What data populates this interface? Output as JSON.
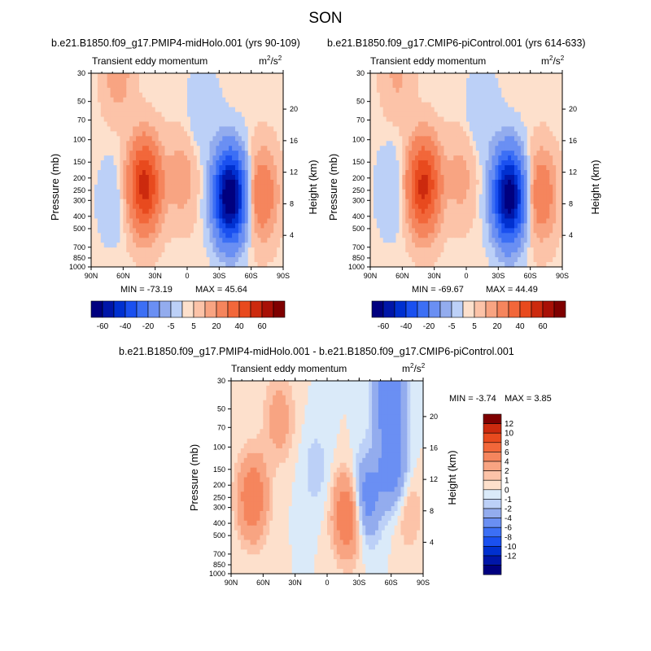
{
  "figure": {
    "title": "SON"
  },
  "labels": {
    "units": "m",
    "units_sup": "2",
    "units_tail": "/s",
    "units_sup2": "2"
  },
  "chart_data": [
    {
      "type": "heatmap",
      "title": "b.e21.B1850.f09_g17.PMIP4-midHolo.001 (yrs 90-109)",
      "subtitle": "Transient eddy momentum",
      "units": "m^2/s^2",
      "xlabel": "",
      "ylabel": "Pressure (mb)",
      "y2label": "Height (km)",
      "x_ticks": [
        "90N",
        "60N",
        "30N",
        "0",
        "30S",
        "60S",
        "90S"
      ],
      "y_ticks": [
        30,
        50,
        70,
        100,
        150,
        200,
        250,
        300,
        400,
        500,
        700,
        850,
        1000
      ],
      "y2_ticks": [
        4,
        8,
        12,
        16,
        20
      ],
      "ylim": [
        1000,
        30
      ],
      "log_y": true,
      "min": -73.19,
      "max": 45.64,
      "min_label": "MIN = -73.19",
      "max_label": "MAX = 45.64",
      "features": [
        {
          "lat": 40,
          "p": 230,
          "value": 45
        },
        {
          "lat": -40,
          "p": 280,
          "value": -73
        },
        {
          "lat": -70,
          "p": 270,
          "value": 18
        },
        {
          "lat": 5,
          "p": 200,
          "value": 8
        },
        {
          "lat": 65,
          "p": 30,
          "value": 8
        },
        {
          "lat": -15,
          "p": 60,
          "value": -5
        },
        {
          "lat": 70,
          "p": 300,
          "value": -4
        }
      ]
    },
    {
      "type": "heatmap",
      "title": "b.e21.B1850.f09_g17.CMIP6-piControl.001 (yrs 614-633)",
      "subtitle": "Transient eddy momentum",
      "units": "m^2/s^2",
      "xlabel": "",
      "ylabel": "Pressure (mb)",
      "y2label": "Height (km)",
      "x_ticks": [
        "90N",
        "60N",
        "30N",
        "0",
        "30S",
        "60S",
        "90S"
      ],
      "y_ticks": [
        30,
        50,
        70,
        100,
        150,
        200,
        250,
        300,
        400,
        500,
        700,
        850,
        1000
      ],
      "y2_ticks": [
        4,
        8,
        12,
        16,
        20
      ],
      "ylim": [
        1000,
        30
      ],
      "log_y": true,
      "min": -69.67,
      "max": 44.49,
      "min_label": "MIN = -69.67",
      "max_label": "MAX = 44.49",
      "features": [
        {
          "lat": 40,
          "p": 230,
          "value": 44
        },
        {
          "lat": -40,
          "p": 280,
          "value": -69
        },
        {
          "lat": -70,
          "p": 270,
          "value": 17
        },
        {
          "lat": 5,
          "p": 200,
          "value": 7
        },
        {
          "lat": 65,
          "p": 30,
          "value": 6
        },
        {
          "lat": -15,
          "p": 60,
          "value": -5
        },
        {
          "lat": 70,
          "p": 250,
          "value": -5
        }
      ]
    },
    {
      "type": "heatmap",
      "title": "b.e21.B1850.f09_g17.PMIP4-midHolo.001 - b.e21.B1850.f09_g17.CMIP6-piControl.001",
      "subtitle": "Transient eddy momentum",
      "units": "m^2/s^2",
      "xlabel": "",
      "ylabel": "Pressure (mb)",
      "y2label": "Height (km)",
      "x_ticks": [
        "90N",
        "60N",
        "30N",
        "0",
        "30S",
        "60S",
        "90S"
      ],
      "y_ticks": [
        30,
        50,
        70,
        100,
        150,
        200,
        250,
        300,
        400,
        500,
        700,
        850,
        1000
      ],
      "y2_ticks": [
        4,
        8,
        12,
        16,
        20
      ],
      "ylim": [
        1000,
        30
      ],
      "log_y": true,
      "min": -3.74,
      "max": 3.85,
      "min_label": "MIN =  -3.74",
      "max_label": "MAX =   3.85",
      "features": [
        {
          "lat": 70,
          "p": 250,
          "value": 3.2
        },
        {
          "lat": -20,
          "p": 340,
          "value": 3.8
        },
        {
          "lat": -35,
          "p": 260,
          "value": -3.2
        },
        {
          "lat": -62,
          "p": 150,
          "value": -3.0
        },
        {
          "lat": -58,
          "p": 40,
          "value": -3.7
        },
        {
          "lat": 45,
          "p": 60,
          "value": 1.5
        },
        {
          "lat": -75,
          "p": 300,
          "value": 1.2
        },
        {
          "lat": 10,
          "p": 150,
          "value": -0.8
        }
      ]
    }
  ],
  "colorbars": {
    "main": {
      "colors": [
        "#00007f",
        "#0016a8",
        "#0030d0",
        "#1a50f0",
        "#3c6ff5",
        "#6a8ff3",
        "#93acee",
        "#bcd0f7",
        "#fde0cc",
        "#fcc3a8",
        "#f8a482",
        "#f5855d",
        "#f2673a",
        "#e84a1e",
        "#cc2a0e",
        "#a81006",
        "#7f0000"
      ],
      "labels": [
        "-60",
        "-40",
        "-20",
        "-5",
        "5",
        "20",
        "40",
        "60"
      ],
      "levels": [
        -60,
        -50,
        -40,
        -30,
        -20,
        -10,
        -5,
        -1,
        1,
        5,
        10,
        20,
        30,
        40,
        50,
        60
      ]
    },
    "diff": {
      "colors": [
        "#00007f",
        "#0016a8",
        "#0030d0",
        "#1a50f0",
        "#3c6ff5",
        "#6a8ff3",
        "#93acee",
        "#bcd0f7",
        "#daeaf9",
        "#fde0cc",
        "#fcc3a8",
        "#f8a482",
        "#f5855d",
        "#f2673a",
        "#e84a1e",
        "#cc2a0e",
        "#7f0000"
      ],
      "labels": [
        "12",
        "10",
        "8",
        "6",
        "4",
        "2",
        "1",
        "0",
        "-1",
        "-2",
        "-4",
        "-6",
        "-8",
        "-10",
        "-12"
      ],
      "levels": [
        -12,
        -10,
        -8,
        -6,
        -4,
        -2,
        -1,
        -0.5,
        0,
        0.5,
        1,
        2,
        4,
        6,
        8,
        10,
        12
      ]
    }
  }
}
